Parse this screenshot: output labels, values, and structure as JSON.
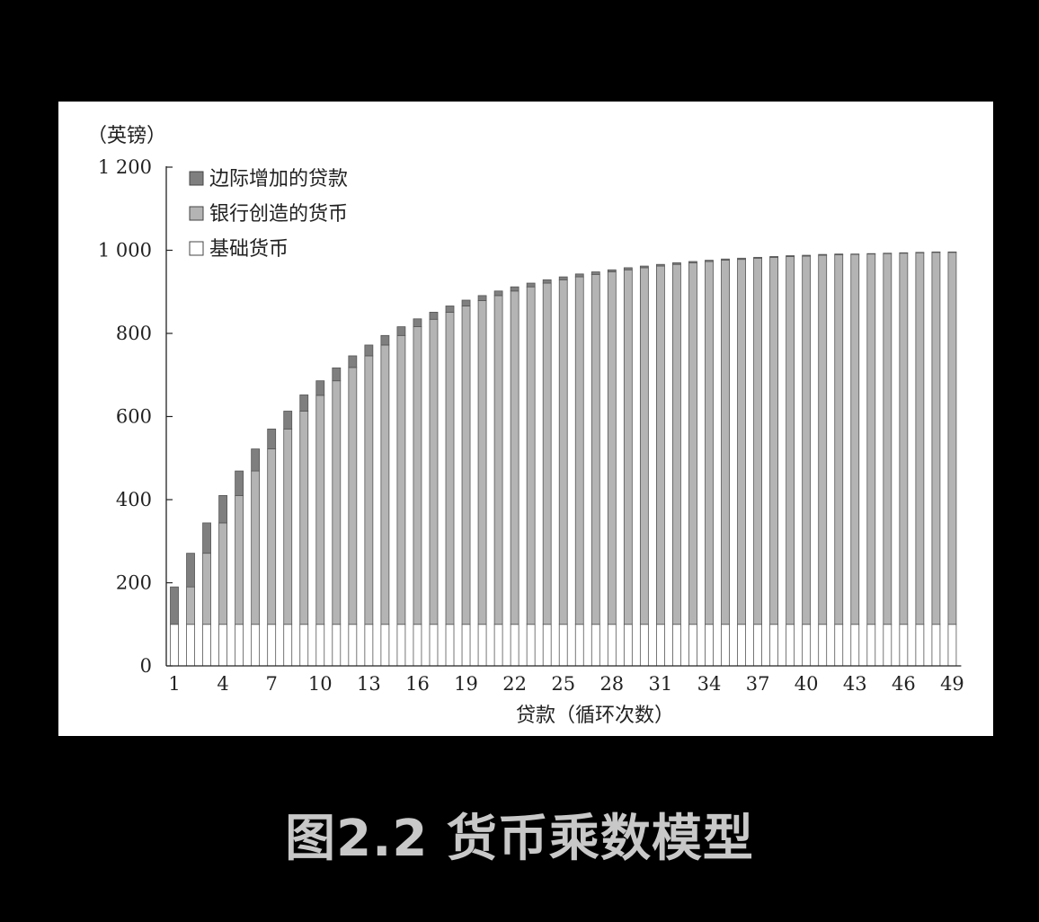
{
  "figure": {
    "caption": "图2.2 货币乘数模型"
  },
  "chart_data": {
    "type": "bar",
    "stacked": true,
    "unit_label": "（英镑）",
    "xlabel": "贷款（循环次数）",
    "ylabel": "",
    "ylim": [
      0,
      1200
    ],
    "yticks": [
      0,
      200,
      400,
      600,
      800,
      1000,
      1200
    ],
    "ytick_labels": [
      "0",
      "200",
      "400",
      "600",
      "800",
      "1 000",
      "1 200"
    ],
    "xtick_labels": [
      "1",
      "4",
      "7",
      "10",
      "13",
      "16",
      "19",
      "22",
      "25",
      "28",
      "31",
      "34",
      "37",
      "40",
      "43",
      "46",
      "49"
    ],
    "categories": [
      "1",
      "2",
      "3",
      "4",
      "5",
      "6",
      "7",
      "8",
      "9",
      "10",
      "11",
      "12",
      "13",
      "14",
      "15",
      "16",
      "17",
      "18",
      "19",
      "20",
      "21",
      "22",
      "23",
      "24",
      "25",
      "26",
      "27",
      "28",
      "29",
      "30",
      "31",
      "32",
      "33",
      "34",
      "35",
      "36",
      "37",
      "38",
      "39",
      "40",
      "41",
      "42",
      "43",
      "44",
      "45",
      "46",
      "47",
      "48",
      "49"
    ],
    "legend_position": "top-left",
    "grid": false,
    "series": [
      {
        "name": "基础货币",
        "color": "#ffffff",
        "values": [
          100,
          100,
          100,
          100,
          100,
          100,
          100,
          100,
          100,
          100,
          100,
          100,
          100,
          100,
          100,
          100,
          100,
          100,
          100,
          100,
          100,
          100,
          100,
          100,
          100,
          100,
          100,
          100,
          100,
          100,
          100,
          100,
          100,
          100,
          100,
          100,
          100,
          100,
          100,
          100,
          100,
          100,
          100,
          100,
          100,
          100,
          100,
          100,
          100
        ]
      },
      {
        "name": "银行创造的货币",
        "color": "#b4b4b4",
        "values": [
          0,
          90,
          171,
          244,
          310,
          369,
          422,
          470,
          513,
          551,
          586,
          618,
          646,
          672,
          695,
          716,
          734,
          751,
          766,
          779,
          791,
          802,
          812,
          821,
          829,
          836,
          842,
          848,
          853,
          858,
          862,
          866,
          870,
          873,
          876,
          878,
          881,
          883,
          885,
          886,
          888,
          889,
          890,
          891,
          892,
          893,
          894,
          895,
          895
        ]
      },
      {
        "name": "边际增加的贷款",
        "color": "#7f7f7f",
        "values": [
          90,
          81,
          73,
          66,
          59,
          53,
          48,
          43,
          39,
          35,
          31,
          28,
          26,
          23,
          21,
          19,
          17,
          15,
          14,
          12,
          11,
          10,
          9,
          8,
          7,
          7,
          6,
          5,
          5,
          4,
          4,
          4,
          3,
          3,
          3,
          3,
          2,
          2,
          2,
          2,
          2,
          2,
          1,
          1,
          1,
          1,
          1,
          1,
          1
        ]
      }
    ]
  }
}
